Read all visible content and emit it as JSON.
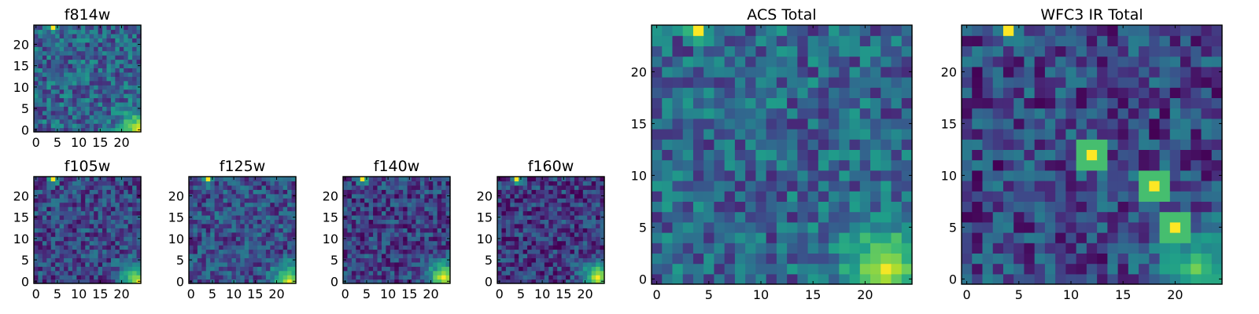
{
  "figure": {
    "title": "",
    "colormap": [
      "#440154",
      "#482878",
      "#3e4989",
      "#31688e",
      "#26828e",
      "#1f9e89",
      "#35b779",
      "#6ece58",
      "#b5de2b",
      "#fde725"
    ]
  },
  "chart_data": [
    {
      "id": "f814w",
      "type": "heatmap",
      "title": "f814w",
      "grid_size": 25,
      "xlim": [
        0,
        25
      ],
      "ylim": [
        0,
        25
      ],
      "xticks": [
        0,
        5,
        10,
        15,
        20
      ],
      "yticks": [
        0,
        5,
        10,
        15,
        20
      ],
      "xlabel": "",
      "ylabel": "",
      "features": [
        {
          "kind": "bright_corner",
          "corner": "bottom-right",
          "center": [
            24,
            0
          ],
          "radius": 9,
          "peak": 1.0
        },
        {
          "kind": "hot_spot",
          "center": [
            4,
            24
          ],
          "radius": 2.5,
          "peak": 1.0
        }
      ],
      "background_level": 0.32,
      "noise": 0.22
    },
    {
      "id": "f105w",
      "type": "heatmap",
      "title": "f105w",
      "grid_size": 25,
      "xlim": [
        0,
        25
      ],
      "ylim": [
        0,
        25
      ],
      "xticks": [
        0,
        5,
        10,
        15,
        20
      ],
      "yticks": [
        0,
        5,
        10,
        15,
        20
      ],
      "xlabel": "",
      "ylabel": "",
      "features": [
        {
          "kind": "bright_corner",
          "corner": "bottom-right",
          "center": [
            24,
            0
          ],
          "radius": 9,
          "peak": 0.95
        },
        {
          "kind": "hot_spot",
          "center": [
            4,
            24
          ],
          "radius": 2.5,
          "peak": 1.0
        }
      ],
      "background_level": 0.22,
      "noise": 0.2
    },
    {
      "id": "f125w",
      "type": "heatmap",
      "title": "f125w",
      "grid_size": 25,
      "xlim": [
        0,
        25
      ],
      "ylim": [
        0,
        25
      ],
      "xticks": [
        0,
        5,
        10,
        15,
        20
      ],
      "yticks": [
        0,
        5,
        10,
        15,
        20
      ],
      "xlabel": "",
      "ylabel": "",
      "features": [
        {
          "kind": "bright_corner",
          "corner": "bottom-right",
          "center": [
            23,
            0
          ],
          "radius": 8,
          "peak": 1.0
        },
        {
          "kind": "hot_spot",
          "center": [
            4,
            24
          ],
          "radius": 2.5,
          "peak": 1.0
        }
      ],
      "background_level": 0.25,
      "noise": 0.2
    },
    {
      "id": "f140w",
      "type": "heatmap",
      "title": "f140w",
      "grid_size": 25,
      "xlim": [
        0,
        25
      ],
      "ylim": [
        0,
        25
      ],
      "xticks": [
        0,
        5,
        10,
        15,
        20
      ],
      "yticks": [
        0,
        5,
        10,
        15,
        20
      ],
      "xlabel": "",
      "ylabel": "",
      "features": [
        {
          "kind": "bright_corner",
          "corner": "bottom-right",
          "center": [
            23,
            1
          ],
          "radius": 8,
          "peak": 1.0
        },
        {
          "kind": "hot_spot",
          "center": [
            4,
            24
          ],
          "radius": 2.5,
          "peak": 1.0
        }
      ],
      "background_level": 0.2,
      "noise": 0.2
    },
    {
      "id": "f160w",
      "type": "heatmap",
      "title": "f160w",
      "grid_size": 25,
      "xlim": [
        0,
        25
      ],
      "ylim": [
        0,
        25
      ],
      "xticks": [
        0,
        5,
        10,
        15,
        20
      ],
      "yticks": [
        0,
        5,
        10,
        15,
        20
      ],
      "xlabel": "",
      "ylabel": "",
      "features": [
        {
          "kind": "bright_corner",
          "corner": "bottom-right",
          "center": [
            23,
            1
          ],
          "radius": 8,
          "peak": 1.0
        },
        {
          "kind": "hot_spot",
          "center": [
            4,
            24
          ],
          "radius": 2.5,
          "peak": 1.0
        }
      ],
      "background_level": 0.18,
      "noise": 0.2
    },
    {
      "id": "acs-total",
      "type": "heatmap",
      "title": "ACS Total",
      "grid_size": 25,
      "xlim": [
        0,
        25
      ],
      "ylim": [
        0,
        25
      ],
      "xticks": [
        0,
        5,
        10,
        15,
        20
      ],
      "yticks": [
        0,
        5,
        10,
        15,
        20
      ],
      "xlabel": "",
      "ylabel": "",
      "features": [
        {
          "kind": "bright_corner",
          "corner": "bottom-right",
          "center": [
            22,
            1
          ],
          "radius": 9,
          "peak": 0.95
        },
        {
          "kind": "hot_spot",
          "center": [
            4,
            24
          ],
          "radius": 2.2,
          "peak": 1.0
        }
      ],
      "background_level": 0.33,
      "noise": 0.22
    },
    {
      "id": "wfc3-ir-total",
      "type": "heatmap",
      "title": "WFC3 IR Total",
      "grid_size": 25,
      "xlim": [
        0,
        25
      ],
      "ylim": [
        0,
        25
      ],
      "xticks": [
        0,
        5,
        10,
        15,
        20
      ],
      "yticks": [
        0,
        5,
        10,
        15,
        20
      ],
      "xlabel": "",
      "ylabel": "",
      "features": [
        {
          "kind": "bright_corner",
          "corner": "bottom-right",
          "center": [
            22,
            1
          ],
          "radius": 8,
          "peak": 0.75
        },
        {
          "kind": "hot_spot",
          "center": [
            4,
            24
          ],
          "radius": 2.2,
          "peak": 1.0
        },
        {
          "kind": "hot_pixel",
          "center": [
            12,
            12
          ],
          "radius": 1.0,
          "peak": 1.0
        },
        {
          "kind": "hot_pixel",
          "center": [
            18,
            9
          ],
          "radius": 1.0,
          "peak": 1.0
        },
        {
          "kind": "hot_pixel",
          "center": [
            20,
            5
          ],
          "radius": 1.0,
          "peak": 1.0
        }
      ],
      "background_level": 0.22,
      "noise": 0.22
    }
  ]
}
